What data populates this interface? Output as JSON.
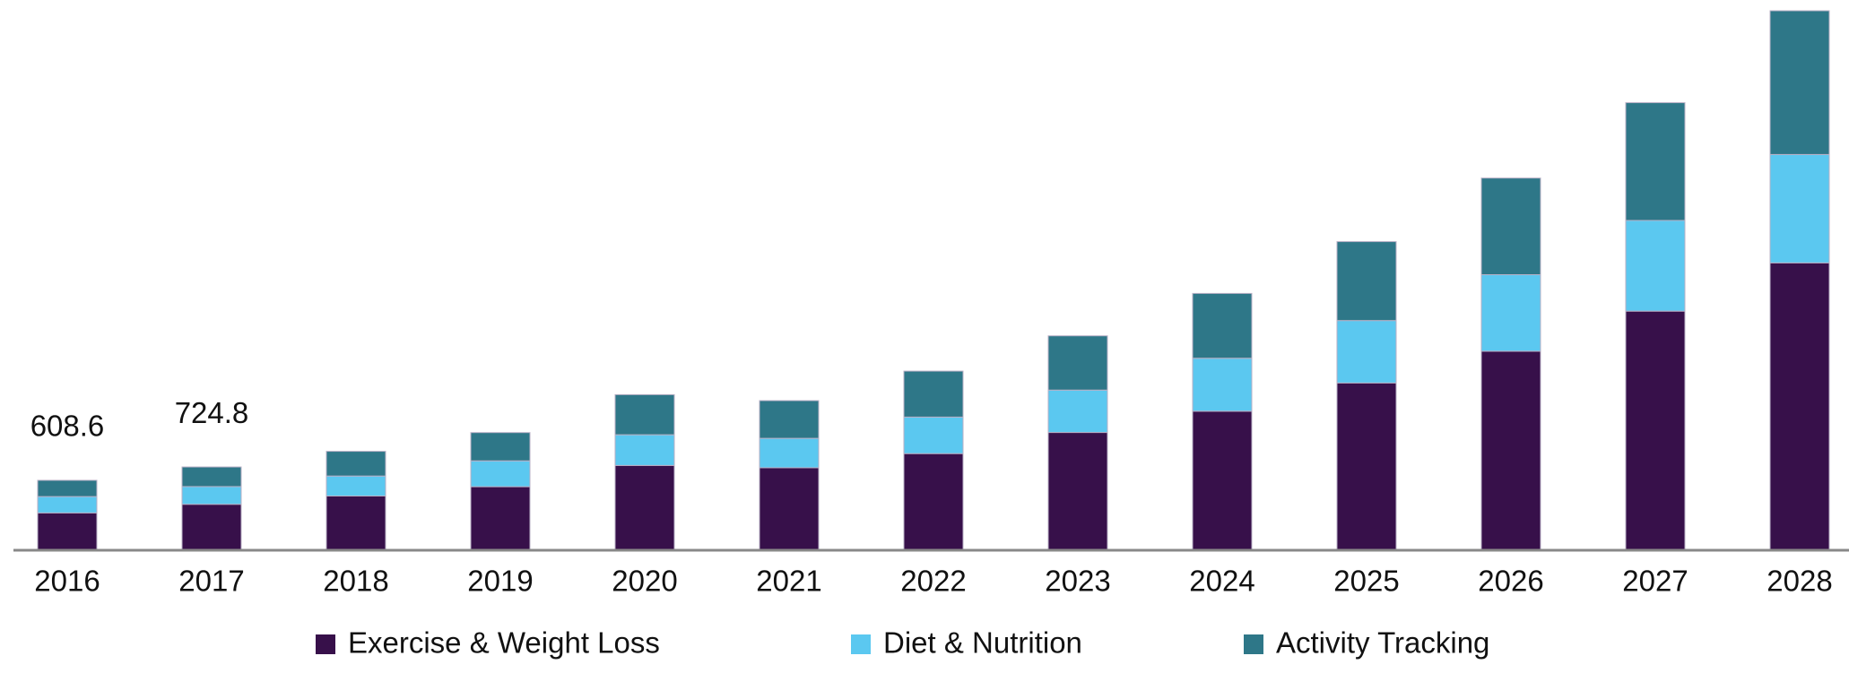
{
  "chart_data": {
    "type": "stacked_bar",
    "categories": [
      "2016",
      "2017",
      "2018",
      "2019",
      "2020",
      "2021",
      "2022",
      "2023",
      "2024",
      "2025",
      "2026",
      "2027",
      "2028"
    ],
    "series": [
      {
        "name": "Exercise & Weight Loss",
        "color": "#37104a",
        "values": [
          325,
          400,
          472,
          553,
          738,
          718,
          841,
          1025,
          1210,
          1456,
          1732,
          2081,
          2501
        ]
      },
      {
        "name": "Diet & Nutrition",
        "color": "#5bc8f0",
        "values": [
          142,
          154,
          174,
          225,
          267,
          256,
          318,
          369,
          461,
          543,
          666,
          789,
          943
        ]
      },
      {
        "name": "Activity Tracking",
        "color": "#2e7788",
        "values": [
          141.6,
          170.8,
          215,
          246,
          349,
          328,
          400,
          472,
          564,
          687,
          841,
          1025,
          1251
        ]
      }
    ],
    "total_labels": [
      "608.6",
      "724.8",
      null,
      null,
      null,
      null,
      null,
      null,
      null,
      null,
      null,
      null,
      null
    ]
  }
}
